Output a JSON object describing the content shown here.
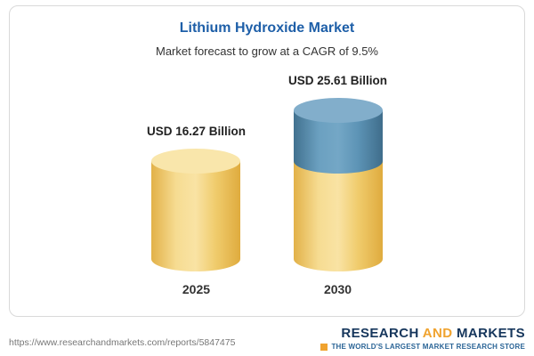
{
  "card": {
    "title": "Lithium Hydroxide Market",
    "subtitle": "Market forecast to grow at a CAGR of 9.5%"
  },
  "chart_data": {
    "type": "bar",
    "chart_style": "3d-cylinder",
    "title": "Lithium Hydroxide Market",
    "subtitle": "Market forecast to grow at a CAGR of 9.5%",
    "unit": "USD Billion",
    "cagr_pct": 9.5,
    "categories": [
      "2025",
      "2030"
    ],
    "values": [
      16.27,
      25.61
    ],
    "value_labels": [
      "USD 16.27 Billion",
      "USD 25.61 Billion"
    ],
    "series": [
      {
        "name": "base-value",
        "values": [
          16.27,
          16.27
        ],
        "color": "#F2CE68"
      },
      {
        "name": "growth-increment",
        "values": [
          0,
          9.34
        ],
        "color": "#5D94B6"
      }
    ],
    "legend": "none",
    "grid": false,
    "axes": "none"
  },
  "footer": {
    "url": "https://www.researchandmarkets.com/reports/5847475",
    "logo": {
      "word1": "RESEARCH",
      "word2": "AND",
      "word3": "MARKETS",
      "tagline": "THE WORLD'S LARGEST MARKET RESEARCH STORE"
    }
  },
  "colors": {
    "title_blue": "#1e5fa8",
    "cylinder_yellow": "#F2CE68",
    "cylinder_blue": "#5D94B6",
    "logo_navy": "#16365c",
    "logo_orange": "#f0a32f"
  }
}
